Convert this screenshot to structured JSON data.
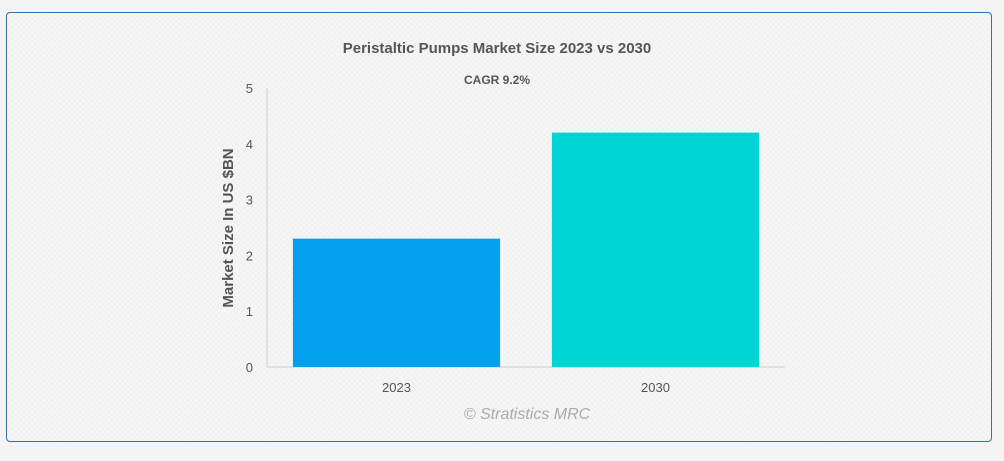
{
  "chart_data": {
    "type": "bar",
    "title": "Peristaltic Pumps Market Size 2023 vs 2030",
    "subtitle": "CAGR 9.2%",
    "categories": [
      "2023",
      "2030"
    ],
    "values": [
      2.3,
      4.2
    ],
    "colors": [
      "#03a0ee",
      "#00d4d4"
    ],
    "xlabel": "",
    "ylabel": "Market Size In US $BN",
    "ylim": [
      0,
      5
    ],
    "yticks": [
      "0",
      "1",
      "2",
      "3",
      "4",
      "5"
    ],
    "grid": false,
    "legend": "none"
  },
  "credit": "© Stratistics MRC"
}
